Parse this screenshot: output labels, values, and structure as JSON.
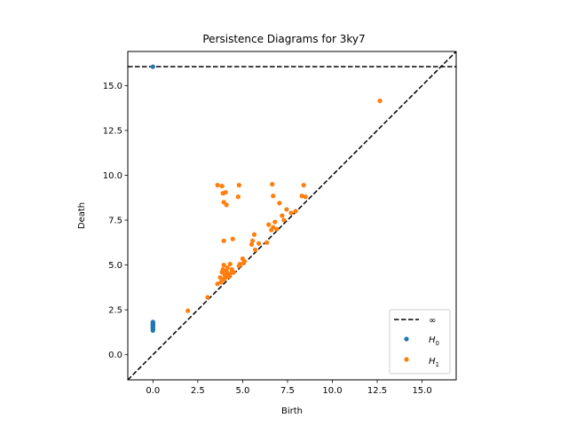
{
  "chart_data": {
    "type": "scatter",
    "title": "Persistence Diagrams for 3ky7",
    "xlabel": "Birth",
    "ylabel": "Death",
    "xlim": [
      -1.4,
      16.9
    ],
    "ylim": [
      -1.4,
      16.9
    ],
    "x_ticks": [
      0.0,
      2.5,
      5.0,
      7.5,
      10.0,
      12.5,
      15.0
    ],
    "x_tick_labels": [
      "0.0",
      "2.5",
      "5.0",
      "7.5",
      "10.0",
      "12.5",
      "15.0"
    ],
    "y_ticks": [
      0.0,
      2.5,
      5.0,
      7.5,
      10.0,
      12.5,
      15.0
    ],
    "y_tick_labels": [
      "0.0",
      "2.5",
      "5.0",
      "7.5",
      "10.0",
      "12.5",
      "15.0"
    ],
    "grid": false,
    "legend_position": "bottom-right",
    "infinity_line": {
      "label": "∞",
      "y": 16.05,
      "style": "dashed",
      "color": "#000000"
    },
    "diagonal": {
      "style": "dashed",
      "color": "#000000"
    },
    "series": [
      {
        "name": "H",
        "subscript": "0",
        "color": "#1f77b4",
        "points": [
          [
            0.0,
            16.05
          ],
          [
            0.0,
            1.35
          ],
          [
            0.0,
            1.42
          ],
          [
            0.0,
            1.48
          ],
          [
            0.0,
            1.53
          ],
          [
            0.0,
            1.58
          ],
          [
            0.0,
            1.63
          ],
          [
            0.0,
            1.68
          ],
          [
            0.0,
            1.73
          ],
          [
            0.0,
            1.78
          ],
          [
            0.0,
            1.82
          ]
        ]
      },
      {
        "name": "H",
        "subscript": "1",
        "color": "#ff7f0e",
        "points": [
          [
            1.95,
            2.45
          ],
          [
            3.05,
            3.2
          ],
          [
            3.6,
            3.95
          ],
          [
            3.75,
            4.3
          ],
          [
            3.8,
            4.05
          ],
          [
            3.85,
            4.6
          ],
          [
            3.9,
            4.75
          ],
          [
            3.95,
            4.2
          ],
          [
            3.95,
            5.0
          ],
          [
            4.0,
            4.45
          ],
          [
            4.05,
            4.3
          ],
          [
            4.1,
            4.65
          ],
          [
            4.15,
            4.85
          ],
          [
            4.2,
            4.5
          ],
          [
            4.25,
            4.35
          ],
          [
            4.3,
            5.05
          ],
          [
            4.35,
            4.55
          ],
          [
            4.4,
            4.75
          ],
          [
            4.5,
            4.6
          ],
          [
            4.8,
            4.95
          ],
          [
            4.85,
            5.05
          ],
          [
            5.0,
            5.35
          ],
          [
            5.05,
            5.1
          ],
          [
            5.1,
            5.2
          ],
          [
            5.5,
            6.15
          ],
          [
            5.55,
            6.35
          ],
          [
            5.65,
            6.7
          ],
          [
            5.7,
            5.85
          ],
          [
            5.9,
            6.2
          ],
          [
            6.35,
            6.25
          ],
          [
            6.45,
            7.25
          ],
          [
            6.6,
            6.95
          ],
          [
            6.7,
            7.1
          ],
          [
            6.8,
            7.4
          ],
          [
            6.9,
            7.0
          ],
          [
            7.05,
            8.45
          ],
          [
            7.2,
            7.75
          ],
          [
            7.3,
            7.5
          ],
          [
            7.45,
            8.1
          ],
          [
            7.7,
            7.9
          ],
          [
            7.95,
            8.0
          ],
          [
            8.3,
            8.85
          ],
          [
            8.4,
            9.45
          ],
          [
            8.5,
            8.8
          ],
          [
            3.6,
            9.45
          ],
          [
            3.85,
            9.4
          ],
          [
            3.9,
            9.0
          ],
          [
            3.95,
            8.5
          ],
          [
            4.05,
            9.05
          ],
          [
            4.1,
            8.35
          ],
          [
            4.75,
            8.8
          ],
          [
            4.8,
            9.45
          ],
          [
            6.65,
            9.5
          ],
          [
            6.7,
            8.85
          ],
          [
            3.95,
            6.35
          ],
          [
            4.45,
            6.45
          ],
          [
            12.65,
            14.15
          ]
        ]
      }
    ]
  }
}
